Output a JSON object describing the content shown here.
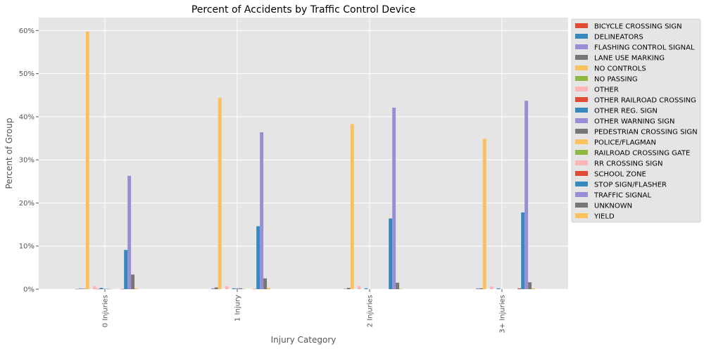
{
  "chart_data": {
    "type": "bar",
    "title": "Percent of Accidents by Traffic Control Device",
    "xlabel": "Injury Category",
    "ylabel": "Percent of Group",
    "categories": [
      "0 Injuries",
      "1 Injury",
      "2 Injuries",
      "3+ Injuries"
    ],
    "ylim": [
      0,
      0.63
    ],
    "yticks": [
      0,
      0.1,
      0.2,
      0.3,
      0.4,
      0.5,
      0.6
    ],
    "ytick_labels": [
      "0%",
      "10%",
      "20%",
      "30%",
      "40%",
      "50%",
      "60%"
    ],
    "grid": true,
    "legend_position": "outside-right",
    "series": [
      {
        "name": "BICYCLE CROSSING SIGN",
        "color": "#E24A33",
        "values": [
          0.0,
          0.0,
          0.0,
          0.0
        ]
      },
      {
        "name": "DELINEATORS",
        "color": "#348ABD",
        "values": [
          0.0005,
          0.0,
          0.0,
          0.0
        ]
      },
      {
        "name": "FLASHING CONTROL SIGNAL",
        "color": "#988ED5",
        "values": [
          0.002,
          0.002,
          0.001,
          0.002
        ]
      },
      {
        "name": "LANE USE MARKING",
        "color": "#777777",
        "values": [
          0.001,
          0.004,
          0.003,
          0.002
        ]
      },
      {
        "name": "NO CONTROLS",
        "color": "#FBC15E",
        "values": [
          0.598,
          0.444,
          0.383,
          0.349
        ]
      },
      {
        "name": "NO PASSING",
        "color": "#8EBA42",
        "values": [
          0.0,
          0.0,
          0.0,
          0.0
        ]
      },
      {
        "name": "OTHER",
        "color": "#FFB5B8",
        "values": [
          0.007,
          0.007,
          0.007,
          0.006
        ]
      },
      {
        "name": "OTHER RAILROAD CROSSING",
        "color": "#E24A33",
        "values": [
          0.0005,
          0.0,
          0.0,
          0.0
        ]
      },
      {
        "name": "OTHER REG. SIGN",
        "color": "#348ABD",
        "values": [
          0.003,
          0.002,
          0.002,
          0.002
        ]
      },
      {
        "name": "OTHER WARNING SIGN",
        "color": "#988ED5",
        "values": [
          0.001,
          0.002,
          0.0,
          0.0
        ]
      },
      {
        "name": "PEDESTRIAN CROSSING SIGN",
        "color": "#777777",
        "values": [
          0.0005,
          0.002,
          0.0,
          0.0
        ]
      },
      {
        "name": "POLICE/FLAGMAN",
        "color": "#FBC15E",
        "values": [
          0.0005,
          0.0005,
          0.0,
          0.0
        ]
      },
      {
        "name": "RAILROAD CROSSING GATE",
        "color": "#8EBA42",
        "values": [
          0.0,
          0.0,
          0.0,
          0.0
        ]
      },
      {
        "name": "RR CROSSING SIGN",
        "color": "#FFB5B8",
        "values": [
          0.0,
          0.0,
          0.0,
          0.0
        ]
      },
      {
        "name": "SCHOOL ZONE",
        "color": "#E24A33",
        "values": [
          0.0005,
          0.0005,
          0.0,
          0.002
        ]
      },
      {
        "name": "STOP SIGN/FLASHER",
        "color": "#348ABD",
        "values": [
          0.091,
          0.146,
          0.164,
          0.178
        ]
      },
      {
        "name": "TRAFFIC SIGNAL",
        "color": "#988ED5",
        "values": [
          0.263,
          0.364,
          0.421,
          0.437
        ]
      },
      {
        "name": "UNKNOWN",
        "color": "#777777",
        "values": [
          0.034,
          0.025,
          0.015,
          0.016
        ]
      },
      {
        "name": "YIELD",
        "color": "#FBC15E",
        "values": [
          0.002,
          0.003,
          0.001,
          0.002
        ]
      }
    ]
  }
}
